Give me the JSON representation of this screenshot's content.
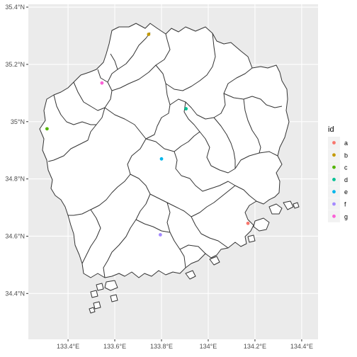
{
  "map": {
    "lon_range": [
      133.23,
      134.47
    ],
    "lat_range": [
      34.24,
      35.41
    ],
    "x_ticks": [
      {
        "value": 133.4,
        "label": "133.4°E"
      },
      {
        "value": 133.6,
        "label": "133.6°E"
      },
      {
        "value": 133.8,
        "label": "133.8°E"
      },
      {
        "value": 134.0,
        "label": "134°E"
      },
      {
        "value": 134.2,
        "label": "134.2°E"
      },
      {
        "value": 134.4,
        "label": "134.4°E"
      }
    ],
    "y_ticks": [
      {
        "value": 34.4,
        "label": "34.4°N"
      },
      {
        "value": 34.6,
        "label": "34.6°N"
      },
      {
        "value": 34.8,
        "label": "34.8°N"
      },
      {
        "value": 35.0,
        "label": "35°N"
      },
      {
        "value": 35.2,
        "label": "35.2°N"
      },
      {
        "value": 35.4,
        "label": "35.4°N"
      }
    ],
    "colors": {
      "panel_background": "#ebebeb",
      "grid_major": "#ffffff",
      "region_fill": "#ffffff",
      "region_border": "#333333"
    },
    "points": [
      {
        "id": "a",
        "lon": 134.17,
        "lat": 34.645,
        "color": "#F8766D"
      },
      {
        "id": "b",
        "lon": 133.745,
        "lat": 35.305,
        "color": "#C49A00"
      },
      {
        "id": "c",
        "lon": 133.31,
        "lat": 34.975,
        "color": "#53B400"
      },
      {
        "id": "d",
        "lon": 133.905,
        "lat": 35.045,
        "color": "#00C094"
      },
      {
        "id": "e",
        "lon": 133.8,
        "lat": 34.87,
        "color": "#00B6EB"
      },
      {
        "id": "f",
        "lon": 133.795,
        "lat": 34.605,
        "color": "#A58AFF"
      },
      {
        "id": "g",
        "lon": 133.545,
        "lat": 35.135,
        "color": "#FB61D7"
      }
    ]
  },
  "legend": {
    "title": "id",
    "items": [
      {
        "label": "a",
        "color": "#F8766D"
      },
      {
        "label": "b",
        "color": "#C49A00"
      },
      {
        "label": "c",
        "color": "#53B400"
      },
      {
        "label": "d",
        "color": "#00C094"
      },
      {
        "label": "e",
        "color": "#00B6EB"
      },
      {
        "label": "f",
        "color": "#A58AFF"
      },
      {
        "label": "g",
        "color": "#FB61D7"
      }
    ]
  }
}
